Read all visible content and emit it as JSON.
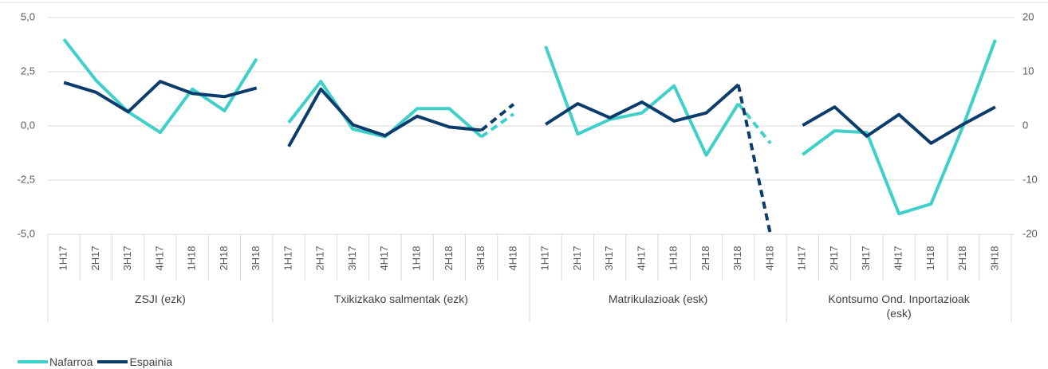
{
  "chart_data": {
    "type": "line",
    "ylim": [
      -5,
      5
    ],
    "yticks": [
      {
        "value": 5,
        "label": "5,0"
      },
      {
        "value": 2.5,
        "label": "2,5"
      },
      {
        "value": 0,
        "label": "0,0"
      },
      {
        "value": -2.5,
        "label": "-2,5"
      },
      {
        "value": -5,
        "label": "-5,0"
      }
    ],
    "y2lim": [
      -20,
      20
    ],
    "y2ticks": [
      20,
      10,
      0,
      -10,
      -20
    ],
    "grid": true,
    "legend": "bottom-left",
    "series": [
      {
        "name": "Nafarroa",
        "color": "#3fd0c9"
      },
      {
        "name": "Espainia",
        "color": "#0c3c6c"
      }
    ],
    "groups": [
      {
        "label": "ZSJI (ezk)",
        "axis": "y",
        "categories": [
          "1H17",
          "2H17",
          "3H17",
          "4H17",
          "1H18",
          "2H18",
          "3H18"
        ],
        "series": [
          {
            "values": [
              4.0,
              2.1,
              0.65,
              -0.3,
              1.7,
              0.7,
              3.1
            ]
          },
          {
            "values": [
              2.0,
              1.55,
              0.65,
              2.05,
              1.5,
              1.35,
              1.75
            ]
          }
        ]
      },
      {
        "label": "Txikizkako salmentak (ezk)",
        "axis": "y",
        "categories": [
          "1H17",
          "2H17",
          "3H17",
          "4H17",
          "1H18",
          "2H18",
          "3H18",
          "4H18"
        ],
        "series": [
          {
            "values": [
              0.15,
              2.05,
              -0.15,
              -0.5,
              0.8,
              0.8,
              -0.5,
              0.55
            ],
            "dash_from": 6
          },
          {
            "values": [
              -0.95,
              1.7,
              0.05,
              -0.45,
              0.45,
              -0.05,
              -0.2,
              1.0
            ],
            "dash_from": 6
          }
        ]
      },
      {
        "label": "Matrikulazioak (esk)",
        "axis": "y2",
        "categories": [
          "1H17",
          "2H17",
          "3H17",
          "4H17",
          "1H18",
          "2H18",
          "3H18",
          "4H18"
        ],
        "series": [
          {
            "values": [
              14.7,
              -1.5,
              1.2,
              2.4,
              7.4,
              -5.4,
              4.1,
              -3.2
            ],
            "dash_from": 6
          },
          {
            "values": [
              0.3,
              4.1,
              1.5,
              4.4,
              0.9,
              2.4,
              7.6,
              -20
            ],
            "dash_from": 6
          }
        ]
      },
      {
        "label": "Kontsumo Ond. Inportazioak (esk)",
        "axis": "y2",
        "categories": [
          "1H17",
          "2H17",
          "3H17",
          "4H17",
          "1H18",
          "2H18",
          "3H18"
        ],
        "series": [
          {
            "values": [
              -5.3,
              -0.9,
              -1.2,
              -16.2,
              -14.4,
              0,
              15.9
            ]
          },
          {
            "values": [
              0.1,
              3.5,
              -1.9,
              2.1,
              -3.2,
              0.3,
              3.5
            ]
          }
        ]
      }
    ]
  }
}
